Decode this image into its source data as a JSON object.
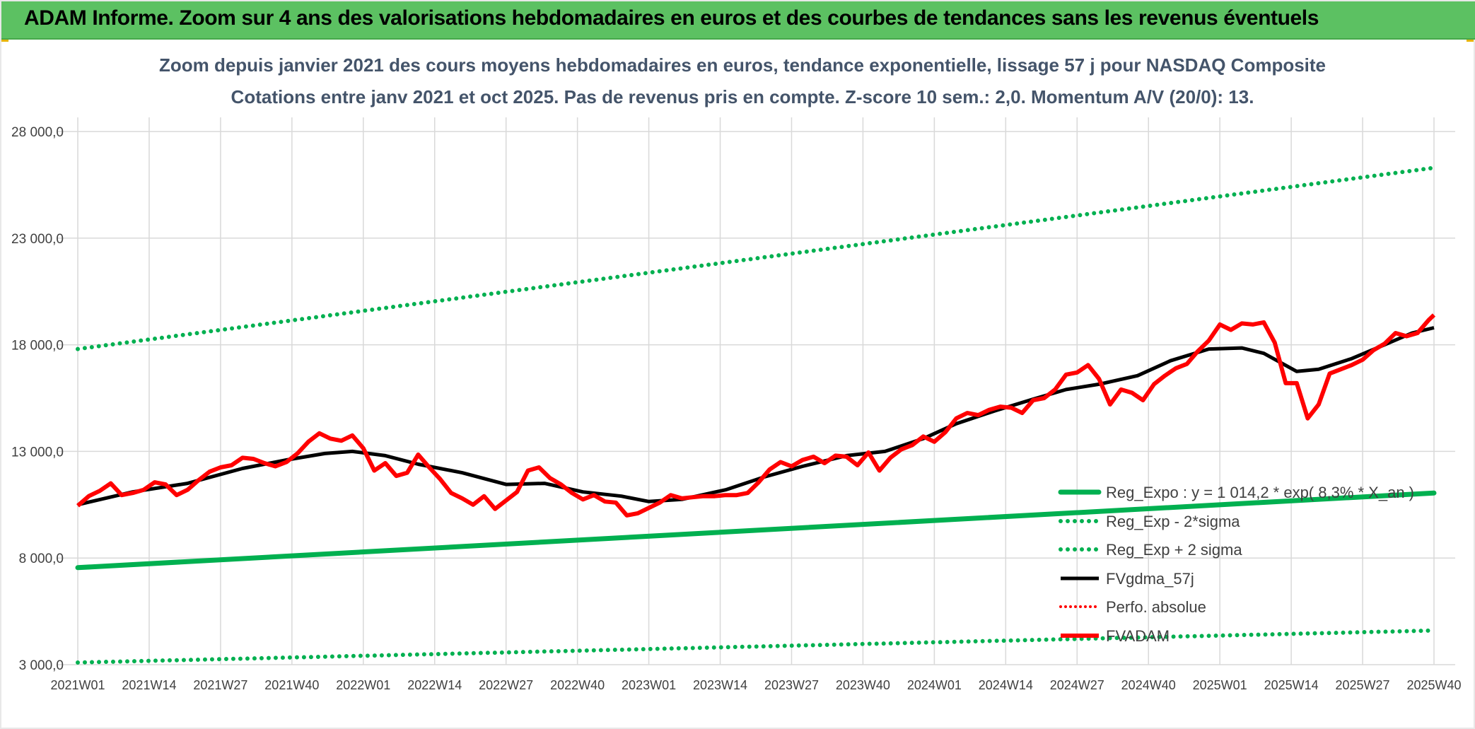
{
  "header": {
    "title": "ADAM Informe. Zoom sur 4 ans des valorisations hebdomadaires en euros et des courbes de tendances sans les revenus éventuels"
  },
  "colors": {
    "header_bg": "#5cc162",
    "green": "#00b050",
    "black": "#000000",
    "red": "#ff0000",
    "grid": "#d9d9d9"
  },
  "chart_data": {
    "type": "line",
    "title": "Zoom depuis janvier 2021 des cours moyens hebdomadaires en euros, tendance exponentielle, lissage 57 j pour NASDAQ Composite",
    "subtitle": "Cotations entre janv 2021 et oct 2025. Pas de revenus pris en compte. Z-score 10 sem.: 2,0. Momentum A/V (20/0): 13.",
    "xlabel": "",
    "ylabel": "",
    "ylim": [
      3000,
      28000
    ],
    "yticks": [
      3000,
      8000,
      13000,
      18000,
      23000,
      28000
    ],
    "ytick_labels": [
      "3 000,0",
      "8 000,0",
      "13 000,0",
      "18 000,0",
      "23 000,0",
      "28 000,0"
    ],
    "x_range_weeks": [
      0,
      247
    ],
    "xtick_positions": [
      0,
      13,
      26,
      39,
      52,
      65,
      78,
      91,
      104,
      117,
      130,
      143,
      156,
      169,
      182,
      195,
      208,
      221,
      234,
      247
    ],
    "xtick_labels": [
      "2021W01",
      "2021W14",
      "2021W27",
      "2021W40",
      "2022W01",
      "2022W14",
      "2022W27",
      "2022W40",
      "2023W01",
      "2023W14",
      "2023W27",
      "2023W40",
      "2024W01",
      "2024W14",
      "2024W27",
      "2024W40",
      "2025W01",
      "2025W14",
      "2025W27",
      "2025W40"
    ],
    "grid": true,
    "legend_position": "right",
    "series": [
      {
        "name": "Reg_Expo : y = 1 014,2 * exp( 8,3% * X_an )",
        "style": "green-thick",
        "x": [
          0,
          247
        ],
        "values": [
          7550,
          11050
        ]
      },
      {
        "name": "Reg_Exp - 2*sigma",
        "style": "green-dotted",
        "x": [
          0,
          247
        ],
        "values": [
          3100,
          4600
        ]
      },
      {
        "name": "Reg_Exp + 2 sigma",
        "style": "green-dotted",
        "x": [
          0,
          247
        ],
        "values": [
          17800,
          26300
        ]
      },
      {
        "name": "FVgdma_57j",
        "style": "black",
        "x": [
          0,
          10,
          20,
          30,
          38,
          45,
          50,
          56,
          62,
          70,
          78,
          85,
          92,
          99,
          104,
          110,
          118,
          125,
          132,
          140,
          147,
          154,
          160,
          167,
          174,
          180,
          186,
          193,
          199,
          206,
          212,
          216,
          222,
          226,
          232,
          238,
          243,
          247
        ],
        "values": [
          10500,
          11100,
          11500,
          12200,
          12600,
          12900,
          13000,
          12800,
          12400,
          12000,
          11450,
          11500,
          11100,
          10900,
          10650,
          10750,
          11200,
          11800,
          12300,
          12800,
          13000,
          13600,
          14300,
          14900,
          15450,
          15900,
          16150,
          16550,
          17250,
          17800,
          17850,
          17600,
          16750,
          16850,
          17350,
          18000,
          18550,
          18800
        ]
      },
      {
        "name": "Perfo. absolue",
        "style": "red-dotted",
        "x": [],
        "values": []
      },
      {
        "name": "FVADAM",
        "style": "red",
        "x": [
          0,
          2,
          4,
          6,
          8,
          10,
          12,
          14,
          16,
          18,
          20,
          22,
          24,
          26,
          28,
          30,
          32,
          34,
          36,
          38,
          40,
          42,
          44,
          46,
          48,
          50,
          52,
          54,
          56,
          58,
          60,
          62,
          64,
          66,
          68,
          70,
          72,
          74,
          76,
          78,
          80,
          82,
          84,
          86,
          88,
          90,
          92,
          94,
          96,
          98,
          100,
          102,
          104,
          106,
          108,
          110,
          112,
          114,
          116,
          118,
          120,
          122,
          124,
          126,
          128,
          130,
          132,
          134,
          136,
          138,
          140,
          142,
          144,
          146,
          148,
          150,
          152,
          154,
          156,
          158,
          160,
          162,
          164,
          166,
          168,
          170,
          172,
          174,
          176,
          178,
          180,
          182,
          184,
          186,
          188,
          190,
          192,
          194,
          196,
          198,
          200,
          202,
          204,
          206,
          208,
          210,
          212,
          214,
          216,
          218,
          220,
          222,
          224,
          226,
          228,
          230,
          232,
          234,
          236,
          238,
          240,
          242,
          244,
          246,
          247
        ],
        "values": [
          10450,
          10900,
          11150,
          11500,
          10950,
          11050,
          11200,
          11550,
          11450,
          10950,
          11200,
          11650,
          12050,
          12250,
          12350,
          12700,
          12650,
          12450,
          12300,
          12500,
          12900,
          13450,
          13850,
          13600,
          13500,
          13750,
          13150,
          12100,
          12450,
          11850,
          12000,
          12850,
          12250,
          11700,
          11050,
          10800,
          10500,
          10900,
          10300,
          10700,
          11100,
          12100,
          12250,
          11750,
          11450,
          11050,
          10750,
          10950,
          10650,
          10600,
          10000,
          10100,
          10350,
          10600,
          10950,
          10800,
          10850,
          10900,
          10900,
          10950,
          10950,
          11050,
          11550,
          12150,
          12500,
          12300,
          12600,
          12750,
          12450,
          12800,
          12750,
          12350,
          12950,
          12100,
          12700,
          13100,
          13300,
          13700,
          13450,
          13900,
          14550,
          14800,
          14700,
          14950,
          15100,
          15050,
          14800,
          15400,
          15500,
          15900,
          16600,
          16700,
          17050,
          16400,
          15200,
          15900,
          15750,
          15400,
          16150,
          16550,
          16900,
          17100,
          17700,
          18200,
          18950,
          18700,
          19000,
          18950,
          19050,
          18100,
          16200,
          16200,
          14550,
          15200,
          16650,
          16850,
          17050,
          17300,
          17750,
          18050,
          18550,
          18400,
          18550,
          19150,
          19400
        ]
      }
    ]
  }
}
